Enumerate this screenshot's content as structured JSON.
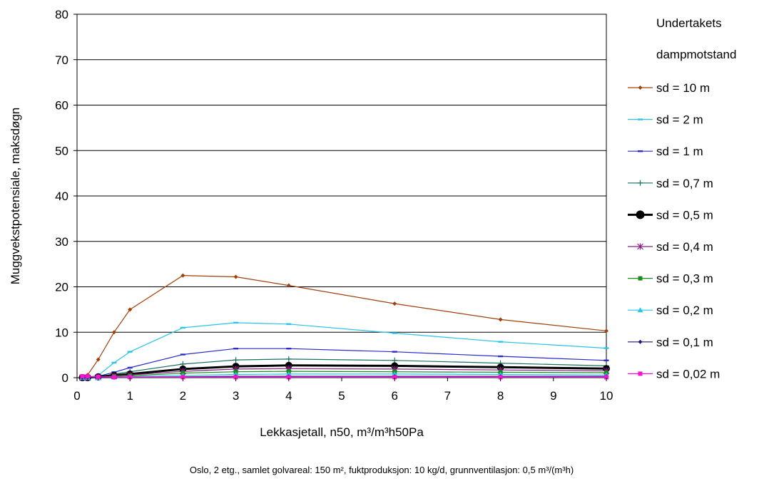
{
  "chart_data": {
    "type": "line",
    "xlabel": "Lekkasjetall, n50, m³/m³h50Pa",
    "ylabel": "Muggvekstpotensiale, maksdøgn",
    "caption": "Oslo, 2 etg., samlet golvareal: 150 m², fuktproduksjon: 10 kg/d, grunnventilasjon: 0,5 m³/(m³h)",
    "legend_title": [
      "Undertakets",
      "dampmotstand"
    ],
    "xlim": [
      0,
      10
    ],
    "ylim": [
      0,
      80
    ],
    "xticks": [
      "0",
      "1",
      "2",
      "3",
      "4",
      "5",
      "6",
      "7",
      "8",
      "9",
      "10"
    ],
    "yticks": [
      "0",
      "10",
      "20",
      "30",
      "40",
      "50",
      "60",
      "70",
      "80"
    ],
    "grid": "horizontal",
    "legend_position": "right",
    "series": [
      {
        "name": "sd = 10 m",
        "color": "#a0400b",
        "marker": "diamond",
        "width": 1.2,
        "x": [
          0.1,
          0.2,
          0.4,
          0.7,
          1,
          2,
          3,
          4,
          6,
          8,
          10
        ],
        "y": [
          0,
          0.6,
          4.0,
          10.0,
          15.0,
          22.5,
          22.2,
          20.3,
          16.3,
          12.8,
          10.3
        ]
      },
      {
        "name": "sd = 2 m",
        "color": "#29c5e6",
        "marker": "dash",
        "width": 1.2,
        "x": [
          0.1,
          0.2,
          0.4,
          0.7,
          1,
          2,
          3,
          4,
          6,
          8,
          10
        ],
        "y": [
          0,
          0,
          0.5,
          3.3,
          5.7,
          11.0,
          12.1,
          11.8,
          9.8,
          7.9,
          6.5
        ]
      },
      {
        "name": "sd = 1 m",
        "color": "#2a2ad0",
        "marker": "dash",
        "width": 1.2,
        "x": [
          0.1,
          0.2,
          0.4,
          0.7,
          1,
          2,
          3,
          4,
          6,
          8,
          10
        ],
        "y": [
          0,
          0,
          0.3,
          1.2,
          2.2,
          5.1,
          6.4,
          6.4,
          5.7,
          4.7,
          3.8
        ]
      },
      {
        "name": "sd = 0,7 m",
        "color": "#1b7060",
        "marker": "plus",
        "width": 1.2,
        "x": [
          0.1,
          0.2,
          0.4,
          0.7,
          1,
          2,
          3,
          4,
          6,
          8,
          10
        ],
        "y": [
          0,
          0,
          0.2,
          0.8,
          1.3,
          3.0,
          3.9,
          4.1,
          3.8,
          3.2,
          2.6
        ]
      },
      {
        "name": "sd = 0,5 m",
        "color": "#000000",
        "marker": "circle",
        "width": 3,
        "x": [
          0.1,
          0.2,
          0.4,
          0.7,
          1,
          2,
          3,
          4,
          6,
          8,
          10
        ],
        "y": [
          0,
          0,
          0.2,
          0.5,
          0.8,
          1.9,
          2.5,
          2.7,
          2.6,
          2.3,
          2.0
        ]
      },
      {
        "name": "sd = 0,4 m",
        "color": "#8b1a8b",
        "marker": "star",
        "width": 1.2,
        "x": [
          0.1,
          0.2,
          0.4,
          0.7,
          1,
          2,
          3,
          4,
          6,
          8,
          10
        ],
        "y": [
          0,
          0,
          0.1,
          0.4,
          0.6,
          1.4,
          1.9,
          2.0,
          1.9,
          1.7,
          1.5
        ]
      },
      {
        "name": "sd = 0,3 m",
        "color": "#1a8c1a",
        "marker": "square",
        "width": 1.2,
        "x": [
          0.1,
          0.2,
          0.4,
          0.7,
          1,
          2,
          3,
          4,
          6,
          8,
          10
        ],
        "y": [
          0,
          0,
          0.1,
          0.3,
          0.4,
          1.0,
          1.3,
          1.4,
          1.3,
          1.2,
          1.1
        ]
      },
      {
        "name": "sd = 0,2 m",
        "color": "#29c5e6",
        "marker": "triangle",
        "width": 1.2,
        "x": [
          0.1,
          0.2,
          0.4,
          0.7,
          1,
          2,
          3,
          4,
          6,
          8,
          10
        ],
        "y": [
          0,
          0,
          0,
          0.1,
          0.2,
          0.5,
          0.7,
          0.8,
          0.8,
          0.7,
          0.6
        ]
      },
      {
        "name": "sd = 0,1 m",
        "color": "#1a1a80",
        "marker": "diamond",
        "width": 1.2,
        "x": [
          0.1,
          0.2,
          0.4,
          0.7,
          1,
          2,
          3,
          4,
          6,
          8,
          10
        ],
        "y": [
          0,
          0,
          0,
          0,
          0.1,
          0.2,
          0.3,
          0.3,
          0.3,
          0.3,
          0.3
        ]
      },
      {
        "name": "sd = 0,02 m",
        "color": "#ff10d0",
        "marker": "square",
        "width": 1.2,
        "x": [
          0.1,
          0.2,
          0.4,
          0.7,
          1,
          2,
          3,
          4,
          6,
          8,
          10
        ],
        "y": [
          0.3,
          0.3,
          0.2,
          0.1,
          0.1,
          0.1,
          0.1,
          0.1,
          0.1,
          0.1,
          0.1
        ]
      }
    ]
  }
}
